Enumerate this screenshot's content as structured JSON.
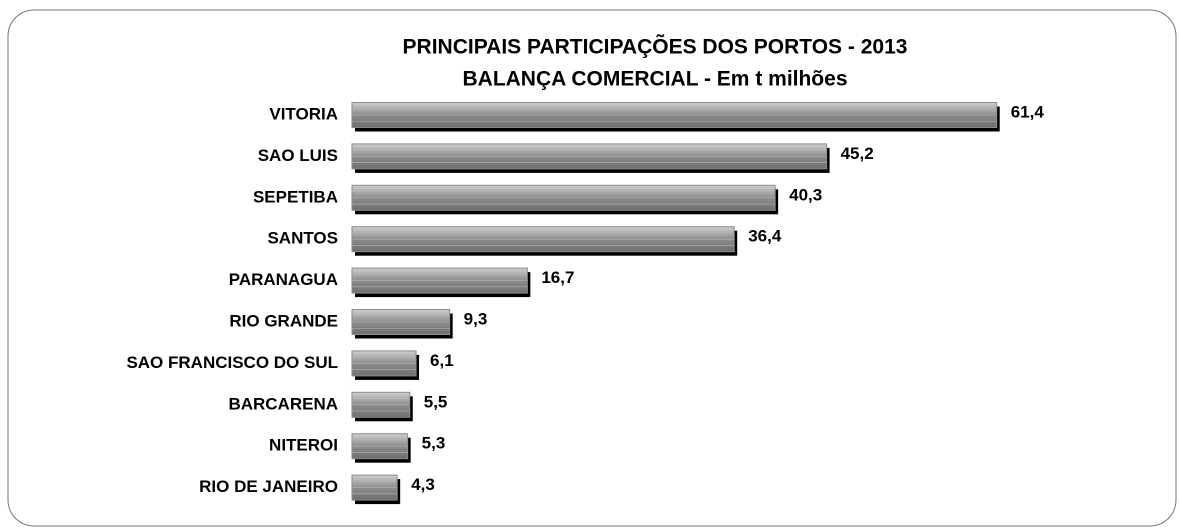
{
  "chart_data": {
    "type": "bar",
    "orientation": "horizontal",
    "title": "PRINCIPAIS PARTICIPAÇÕES DOS PORTOS - 2013",
    "subtitle": "BALANÇA COMERCIAL - Em t milhões",
    "categories": [
      "VITORIA",
      "SAO LUIS",
      "SEPETIBA",
      "SANTOS",
      "PARANAGUA",
      "RIO GRANDE",
      "SAO FRANCISCO DO SUL",
      "BARCARENA",
      "NITEROI",
      "RIO DE JANEIRO"
    ],
    "values": [
      61.4,
      45.2,
      40.3,
      36.4,
      16.7,
      9.3,
      6.1,
      5.5,
      5.3,
      4.3
    ],
    "value_labels": [
      "61,4",
      "45,2",
      "40,3",
      "36,4",
      "16,7",
      "9,3",
      "6,1",
      "5,5",
      "5,3",
      "4,3"
    ],
    "color": "#8c8c8c"
  }
}
